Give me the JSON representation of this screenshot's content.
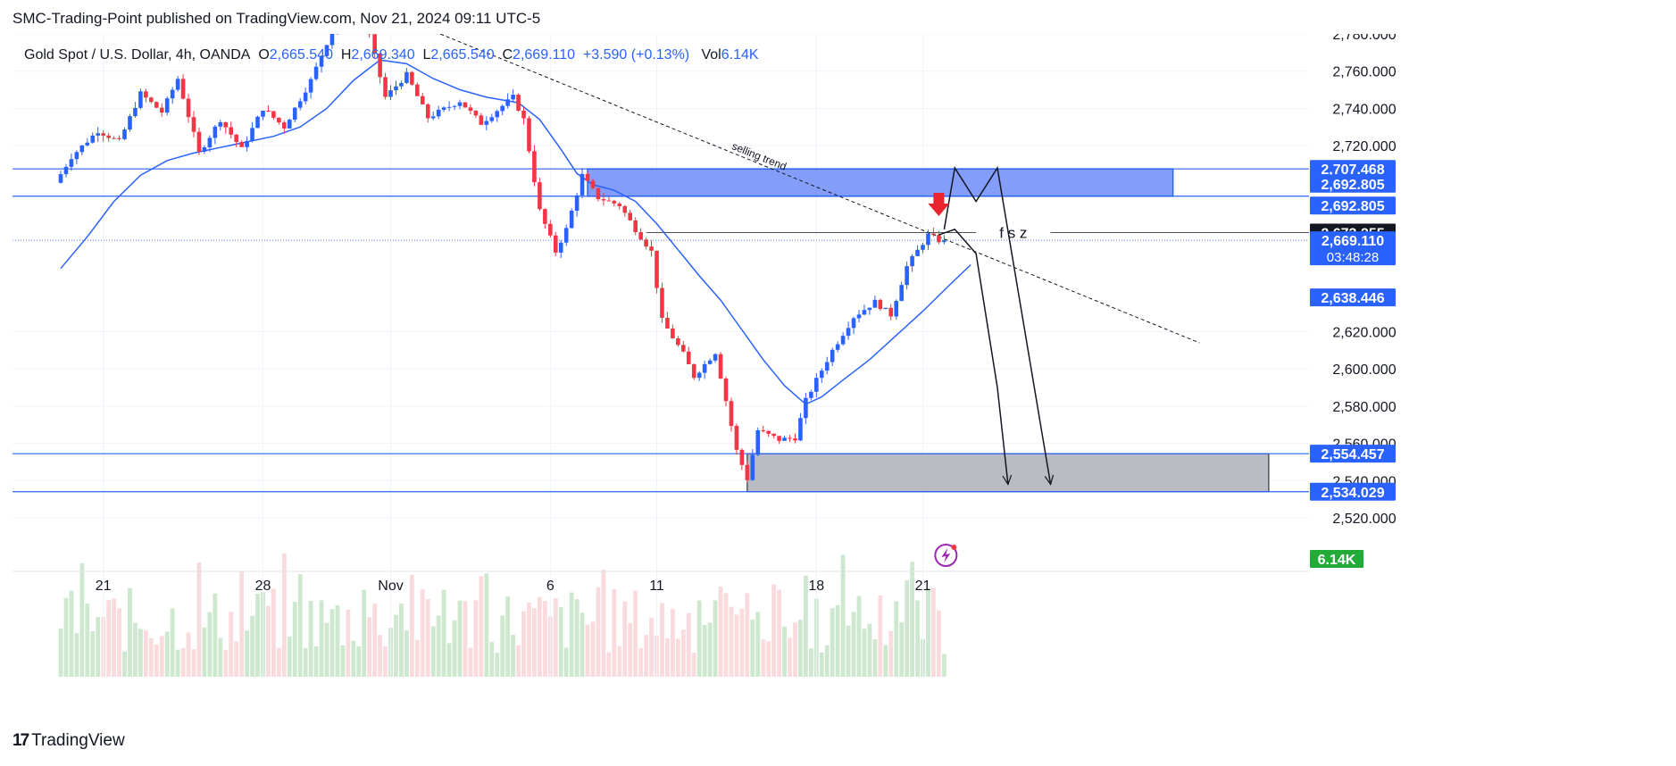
{
  "attribution": "SMC-Trading-Point published on TradingView.com, Nov 21, 2024 09:11 UTC-5",
  "legend": {
    "symbol": "Gold Spot / U.S. Dollar, 4h, OANDA",
    "o_label": "O",
    "o_value": "2,665.540",
    "h_label": "H",
    "h_value": "2,669.340",
    "l_label": "L",
    "l_value": "2,665.540",
    "c_label": "C",
    "c_value": "2,669.110",
    "change": "+3.590 (+0.13%)",
    "vol_label": "Vol",
    "vol_value": "6.14K"
  },
  "brand": {
    "logo_text": "17",
    "name": "TradingView"
  },
  "colors": {
    "up": "#2962ff",
    "down": "#f23645",
    "ma": "#2962ff",
    "zone_blue": "#5b7cf7",
    "zone_gray": "#b2b5be",
    "vol_up": "#c8e6c9",
    "vol_down": "#f8d7da",
    "vol_badge": "#22ab37"
  },
  "chart_data": {
    "type": "candlestick",
    "title": "Gold Spot / U.S. Dollar, 4h, OANDA",
    "timeframe": "4h",
    "ylim": [
      2500,
      2785
    ],
    "y_ticks": [
      {
        "value": 2780,
        "label": "2,780.000"
      },
      {
        "value": 2760,
        "label": "2,760.000"
      },
      {
        "value": 2740,
        "label": "2,740.000"
      },
      {
        "value": 2720,
        "label": "2,720.000"
      },
      {
        "value": 2620,
        "label": "2,620.000"
      },
      {
        "value": 2600,
        "label": "2,600.000"
      },
      {
        "value": 2580,
        "label": "2,580.000"
      },
      {
        "value": 2560,
        "label": "2,560.000"
      },
      {
        "value": 2540,
        "label": "2,540.000"
      },
      {
        "value": 2520,
        "label": "2,520.000"
      }
    ],
    "x_ticks": [
      {
        "bar": 8,
        "label": "21"
      },
      {
        "bar": 38,
        "label": "28"
      },
      {
        "bar": 62,
        "label": "Nov"
      },
      {
        "bar": 92,
        "label": "6"
      },
      {
        "bar": 112,
        "label": "11"
      },
      {
        "bar": 142,
        "label": "18"
      },
      {
        "bar": 162,
        "label": "21"
      }
    ],
    "key_path": [
      [
        0,
        2700
      ],
      [
        3,
        2714
      ],
      [
        8,
        2728
      ],
      [
        12,
        2722
      ],
      [
        16,
        2748
      ],
      [
        20,
        2738
      ],
      [
        23,
        2756
      ],
      [
        27,
        2716
      ],
      [
        31,
        2734
      ],
      [
        35,
        2718
      ],
      [
        39,
        2740
      ],
      [
        43,
        2730
      ],
      [
        48,
        2755
      ],
      [
        52,
        2782
      ],
      [
        58,
        2790
      ],
      [
        62,
        2746
      ],
      [
        66,
        2758
      ],
      [
        70,
        2735
      ],
      [
        76,
        2744
      ],
      [
        80,
        2732
      ],
      [
        86,
        2746
      ],
      [
        88,
        2734
      ],
      [
        91,
        2685
      ],
      [
        94,
        2663
      ],
      [
        96,
        2675
      ],
      [
        99,
        2704
      ],
      [
        102,
        2692
      ],
      [
        106,
        2688
      ],
      [
        109,
        2675
      ],
      [
        112,
        2663
      ],
      [
        114,
        2626
      ],
      [
        118,
        2608
      ],
      [
        120,
        2596
      ],
      [
        124,
        2609
      ],
      [
        126,
        2583
      ],
      [
        128,
        2556
      ],
      [
        130,
        2541
      ],
      [
        132,
        2567
      ],
      [
        136,
        2562
      ],
      [
        139,
        2563
      ],
      [
        141,
        2583
      ],
      [
        143,
        2594
      ],
      [
        146,
        2610
      ],
      [
        150,
        2628
      ],
      [
        154,
        2636
      ],
      [
        157,
        2629
      ],
      [
        160,
        2655
      ],
      [
        164,
        2672
      ],
      [
        166,
        2669.11
      ]
    ],
    "ma_path": [
      [
        0,
        2654
      ],
      [
        5,
        2671
      ],
      [
        10,
        2690
      ],
      [
        15,
        2704
      ],
      [
        20,
        2712
      ],
      [
        25,
        2716
      ],
      [
        30,
        2719
      ],
      [
        35,
        2722
      ],
      [
        40,
        2725
      ],
      [
        45,
        2730
      ],
      [
        50,
        2740
      ],
      [
        55,
        2755
      ],
      [
        60,
        2766
      ],
      [
        65,
        2764
      ],
      [
        70,
        2756
      ],
      [
        75,
        2750
      ],
      [
        80,
        2746
      ],
      [
        86,
        2743
      ],
      [
        90,
        2734
      ],
      [
        94,
        2718
      ],
      [
        97,
        2705
      ],
      [
        100,
        2699
      ],
      [
        104,
        2696
      ],
      [
        108,
        2690
      ],
      [
        112,
        2678
      ],
      [
        116,
        2664
      ],
      [
        120,
        2650
      ],
      [
        124,
        2637
      ],
      [
        128,
        2621
      ],
      [
        132,
        2605
      ],
      [
        136,
        2591
      ],
      [
        140,
        2581
      ],
      [
        143,
        2585
      ],
      [
        147,
        2594
      ],
      [
        152,
        2605
      ],
      [
        157,
        2618
      ],
      [
        162,
        2631
      ],
      [
        167,
        2645
      ],
      [
        171,
        2656
      ]
    ],
    "volume_peak_label": "6.14K",
    "levels": [
      {
        "value": 2707.468,
        "label": "2,707.468",
        "kind": "line"
      },
      {
        "value": 2692.805,
        "label": "2,692.805",
        "kind": "line"
      },
      {
        "value": 2692.805,
        "label": "2,692.805",
        "kind": "tag"
      },
      {
        "value": 2673.255,
        "label": "2,673.255",
        "kind": "black"
      },
      {
        "value": 2669.11,
        "label": "2,669.110",
        "kind": "price"
      },
      {
        "value": 2638.446,
        "label": "2,638.446",
        "kind": "ma"
      },
      {
        "value": 2554.457,
        "label": "2,554.457",
        "kind": "line"
      },
      {
        "value": 2534.029,
        "label": "2,534.029",
        "kind": "line"
      }
    ],
    "countdown": "03:48:28",
    "annotations": {
      "trendline_label": "selling trend",
      "fsz_label": "f s z",
      "fsz_level": 2673.255,
      "supply_zone": {
        "from_bar": 99,
        "to_bar": 209,
        "low": 2692.805,
        "high": 2707.468
      },
      "demand_zone": {
        "from_bar": 129,
        "to_bar": 227,
        "low": 2534.029,
        "high": 2554.457
      },
      "trendline": {
        "from": [
          67,
          2785
        ],
        "to": [
          214,
          2614
        ]
      },
      "projection_1": [
        [
          165,
          2672
        ],
        [
          168,
          2675
        ],
        [
          172,
          2662
        ],
        [
          176,
          2590
        ],
        [
          178,
          2538
        ]
      ],
      "projection_2": [
        [
          166,
          2675
        ],
        [
          168,
          2708
        ],
        [
          172,
          2690
        ],
        [
          176,
          2708
        ],
        [
          186,
          2538
        ]
      ]
    }
  }
}
